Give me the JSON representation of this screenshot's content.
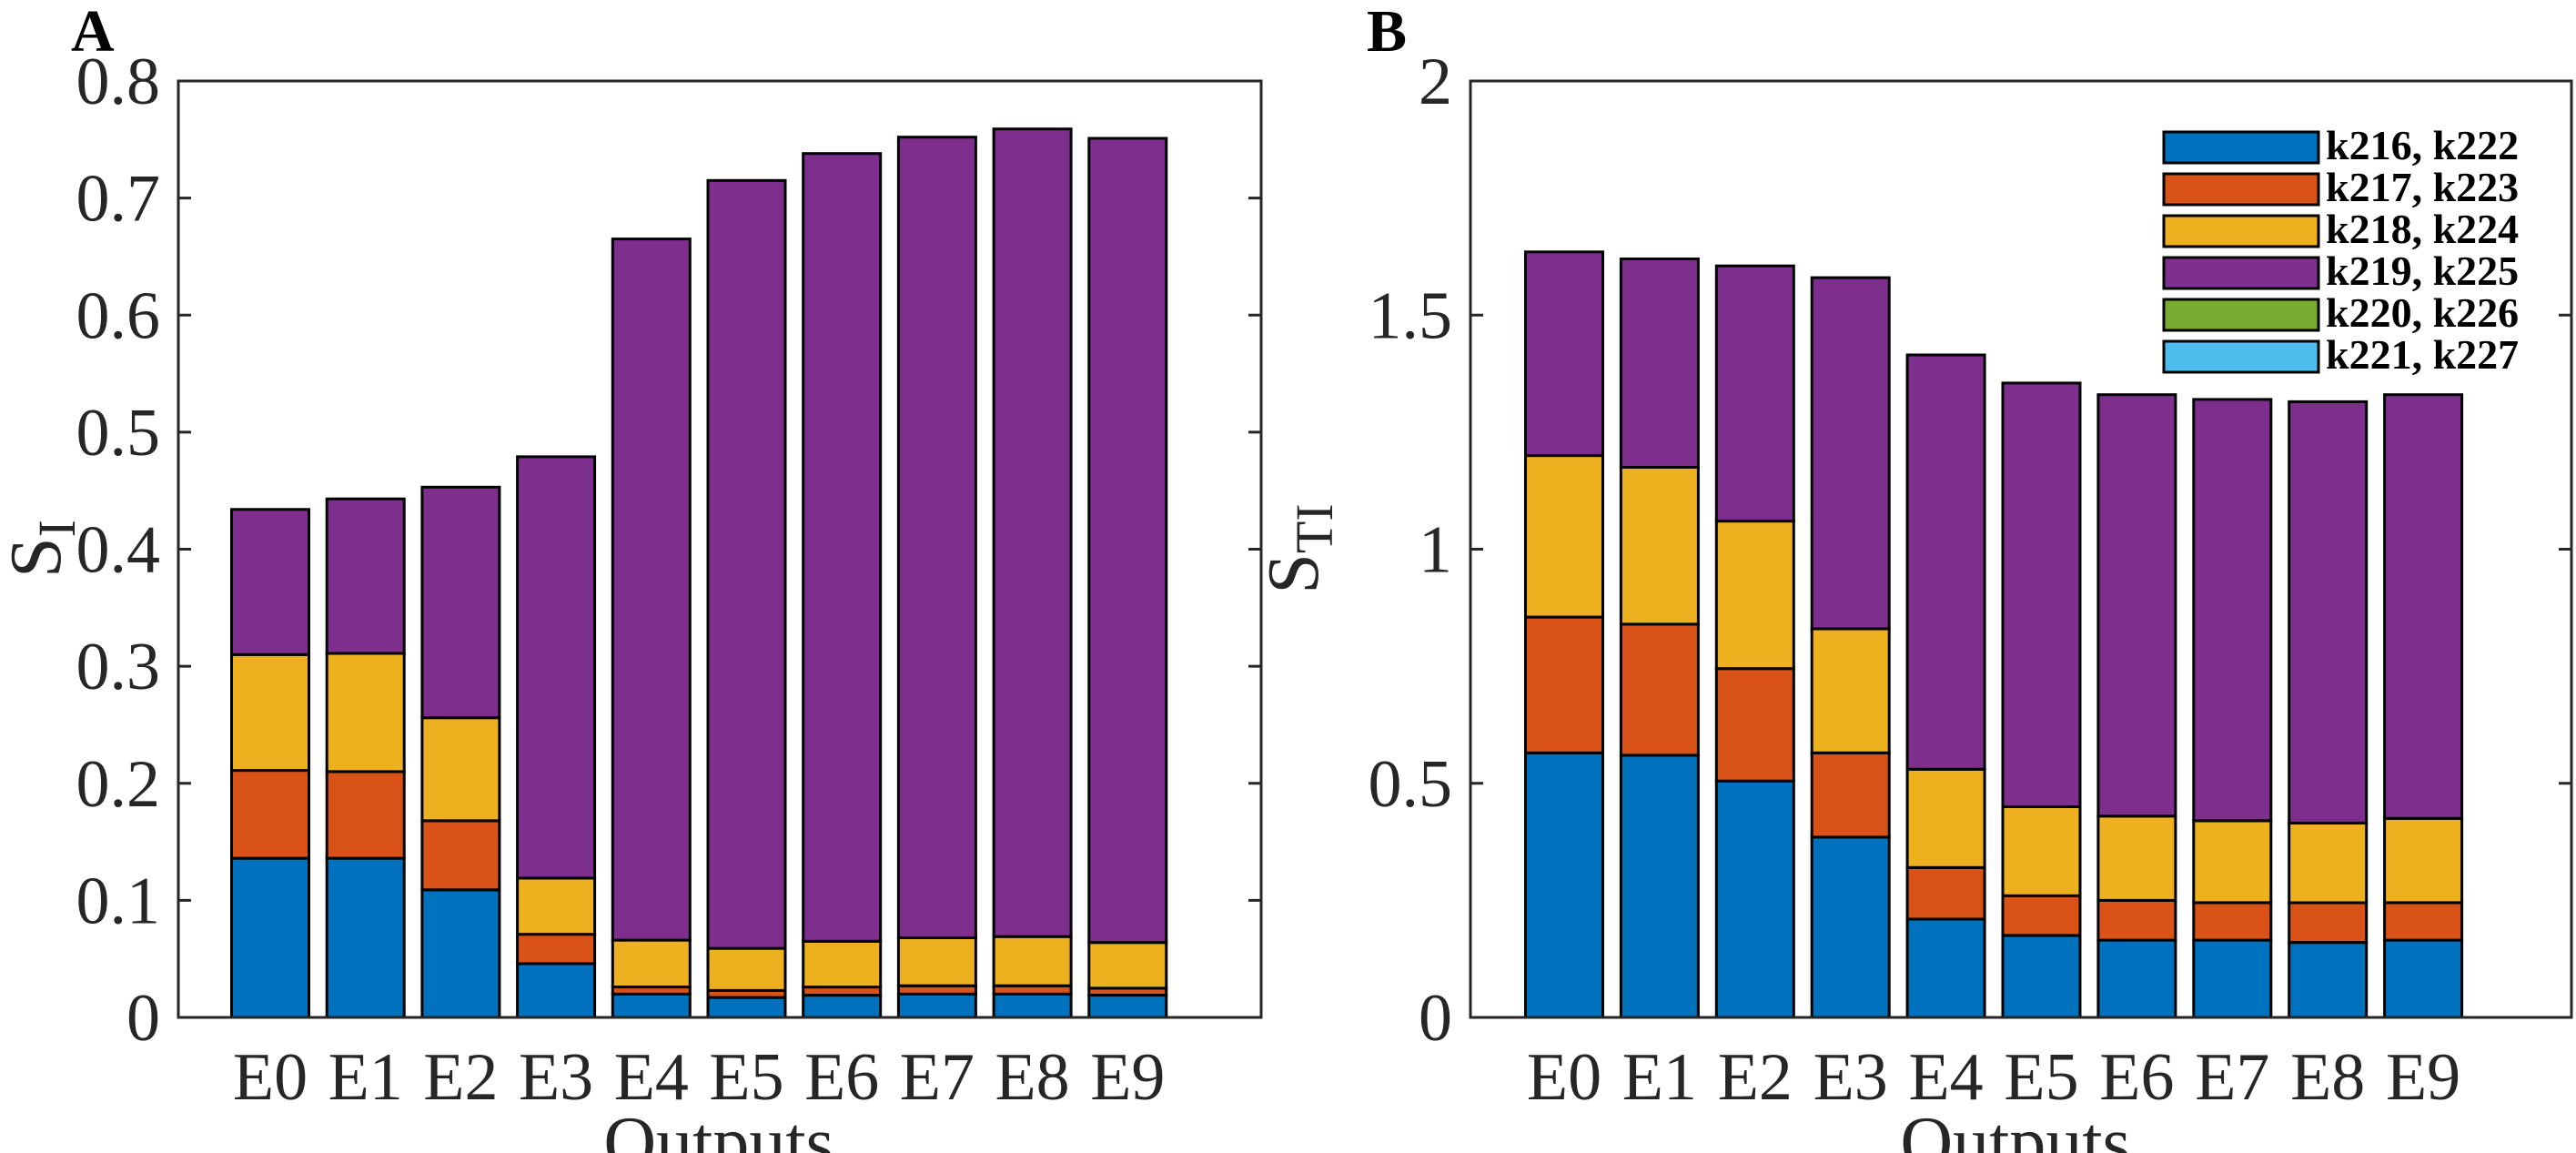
{
  "colors": {
    "k216_k222": "#0072BD",
    "k217_k223": "#D95319",
    "k218_k224": "#EDB120",
    "k219_k225": "#7E2F8E",
    "k220_k226": "#77AC30",
    "k221_k227": "#4DBEEE"
  },
  "chart_data": [
    {
      "panel": "A",
      "type": "bar",
      "stacked": true,
      "ylabel_main": "S",
      "ylabel_sub": "I",
      "xlabel": "Outputs",
      "categories": [
        "E0",
        "E1",
        "E2",
        "E3",
        "E4",
        "E5",
        "E6",
        "E7",
        "E8",
        "E9"
      ],
      "ylim": [
        0,
        0.8
      ],
      "yticks": [
        0,
        0.1,
        0.2,
        0.3,
        0.4,
        0.5,
        0.6,
        0.7,
        0.8
      ],
      "ytick_labels": [
        "0",
        "0.1",
        "0.2",
        "0.3",
        "0.4",
        "0.5",
        "0.6",
        "0.7",
        "0.8"
      ],
      "grid": false,
      "legend": false,
      "series": [
        {
          "name": "k216, k222",
          "color_key": "k216_k222",
          "values": [
            0.136,
            0.136,
            0.109,
            0.046,
            0.02,
            0.017,
            0.019,
            0.02,
            0.02,
            0.019
          ]
        },
        {
          "name": "k217, k223",
          "color_key": "k217_k223",
          "values": [
            0.075,
            0.074,
            0.059,
            0.025,
            0.006,
            0.006,
            0.007,
            0.007,
            0.007,
            0.006
          ]
        },
        {
          "name": "k218, k224",
          "color_key": "k218_k224",
          "values": [
            0.099,
            0.101,
            0.088,
            0.048,
            0.04,
            0.036,
            0.039,
            0.041,
            0.042,
            0.039
          ]
        },
        {
          "name": "k219, k225",
          "color_key": "k219_k225",
          "values": [
            0.124,
            0.132,
            0.197,
            0.36,
            0.599,
            0.656,
            0.673,
            0.684,
            0.69,
            0.687
          ]
        },
        {
          "name": "k220, k226",
          "color_key": "k220_k226",
          "values": [
            0,
            0,
            0,
            0,
            0,
            0,
            0,
            0,
            0,
            0
          ]
        },
        {
          "name": "k221, k227",
          "color_key": "k221_k227",
          "values": [
            0,
            0,
            0,
            0,
            0,
            0,
            0,
            0,
            0,
            0
          ]
        }
      ]
    },
    {
      "panel": "B",
      "type": "bar",
      "stacked": true,
      "ylabel_main": "S",
      "ylabel_sub": "TI",
      "xlabel": "Outputs",
      "categories": [
        "E0",
        "E1",
        "E2",
        "E3",
        "E4",
        "E5",
        "E6",
        "E7",
        "E8",
        "E9"
      ],
      "ylim": [
        0,
        2
      ],
      "yticks": [
        0,
        0.5,
        1,
        1.5,
        2
      ],
      "ytick_labels": [
        "0",
        "0.5",
        "1",
        "1.5",
        "2"
      ],
      "grid": false,
      "legend": true,
      "legend_position": "top-right",
      "series": [
        {
          "name": "k216, k222",
          "color_key": "k216_k222",
          "values": [
            0.565,
            0.56,
            0.505,
            0.385,
            0.21,
            0.175,
            0.165,
            0.165,
            0.16,
            0.165
          ]
        },
        {
          "name": "k217, k223",
          "color_key": "k217_k223",
          "values": [
            0.29,
            0.28,
            0.24,
            0.18,
            0.11,
            0.085,
            0.085,
            0.08,
            0.085,
            0.08
          ]
        },
        {
          "name": "k218, k224",
          "color_key": "k218_k224",
          "values": [
            0.345,
            0.335,
            0.315,
            0.265,
            0.21,
            0.19,
            0.18,
            0.175,
            0.17,
            0.18
          ]
        },
        {
          "name": "k219, k225",
          "color_key": "k219_k225",
          "values": [
            0.435,
            0.445,
            0.545,
            0.75,
            0.885,
            0.905,
            0.9,
            0.9,
            0.9,
            0.905
          ]
        },
        {
          "name": "k220, k226",
          "color_key": "k220_k226",
          "values": [
            0,
            0,
            0,
            0,
            0,
            0,
            0,
            0,
            0,
            0
          ]
        },
        {
          "name": "k221, k227",
          "color_key": "k221_k227",
          "values": [
            0,
            0,
            0,
            0,
            0,
            0,
            0,
            0,
            0,
            0
          ]
        }
      ]
    }
  ]
}
